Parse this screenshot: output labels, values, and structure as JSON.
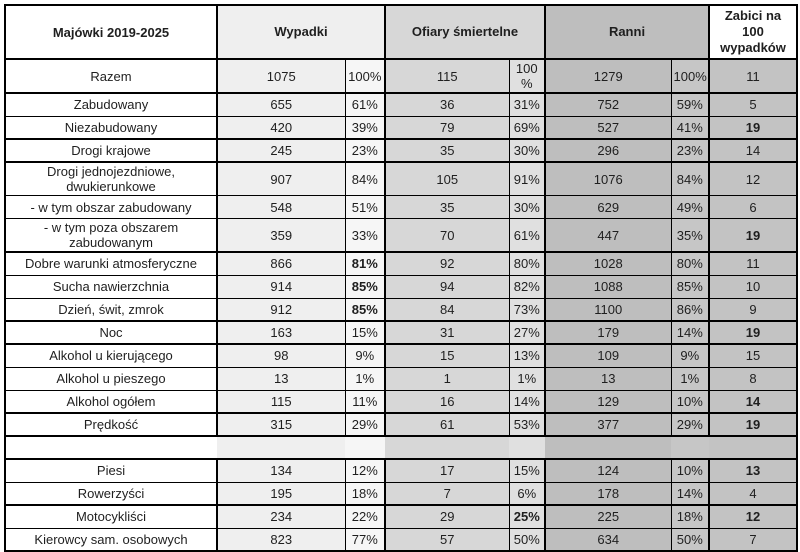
{
  "table": {
    "corner_label": "Majówki 2019-2025",
    "col_groups": {
      "wypadki": "Wypadki",
      "ofiary": "Ofiary śmiertelne",
      "ranni": "Ranni",
      "zabici": "Zabici na 100 wypadków"
    },
    "rows": [
      {
        "label": "Razem",
        "wypadki": "1075",
        "wypadki_pct": "100%",
        "ofiary": "115",
        "ofiary_pct": "100 %",
        "ranni": "1279",
        "ranni_pct": "100%",
        "zabici": "11",
        "bold": [],
        "thick_bottom": true,
        "tall": true
      },
      {
        "label": "Zabudowany",
        "wypadki": "655",
        "wypadki_pct": "61%",
        "ofiary": "36",
        "ofiary_pct": "31%",
        "ranni": "752",
        "ranni_pct": "59%",
        "zabici": "5",
        "bold": [],
        "thick_bottom": false
      },
      {
        "label": "Niezabudowany",
        "wypadki": "420",
        "wypadki_pct": "39%",
        "ofiary": "79",
        "ofiary_pct": "69%",
        "ranni": "527",
        "ranni_pct": "41%",
        "zabici": "19",
        "bold": [
          "zabici"
        ],
        "thick_bottom": true
      },
      {
        "label": "Drogi krajowe",
        "wypadki": "245",
        "wypadki_pct": "23%",
        "ofiary": "35",
        "ofiary_pct": "30%",
        "ranni": "296",
        "ranni_pct": "23%",
        "zabici": "14",
        "bold": [],
        "thick_bottom": true
      },
      {
        "label": "Drogi jednojezdniowe, dwukierunkowe",
        "wypadki": "907",
        "wypadki_pct": "84%",
        "ofiary": "105",
        "ofiary_pct": "91%",
        "ranni": "1076",
        "ranni_pct": "84%",
        "zabici": "12",
        "bold": [],
        "thick_bottom": false
      },
      {
        "label": "- w tym obszar zabudowany",
        "wypadki": "548",
        "wypadki_pct": "51%",
        "ofiary": "35",
        "ofiary_pct": "30%",
        "ranni": "629",
        "ranni_pct": "49%",
        "zabici": "6",
        "bold": [],
        "thick_bottom": false
      },
      {
        "label": "- w tym poza obszarem zabudowanym",
        "wypadki": "359",
        "wypadki_pct": "33%",
        "ofiary": "70",
        "ofiary_pct": "61%",
        "ranni": "447",
        "ranni_pct": "35%",
        "zabici": "19",
        "bold": [
          "zabici"
        ],
        "thick_bottom": true
      },
      {
        "label": "Dobre warunki atmosferyczne",
        "wypadki": "866",
        "wypadki_pct": "81%",
        "ofiary": "92",
        "ofiary_pct": "80%",
        "ranni": "1028",
        "ranni_pct": "80%",
        "zabici": "11",
        "bold": [
          "wypadki_pct"
        ],
        "thick_bottom": false
      },
      {
        "label": "Sucha nawierzchnia",
        "wypadki": "914",
        "wypadki_pct": "85%",
        "ofiary": "94",
        "ofiary_pct": "82%",
        "ranni": "1088",
        "ranni_pct": "85%",
        "zabici": "10",
        "bold": [
          "wypadki_pct"
        ],
        "thick_bottom": false
      },
      {
        "label": "Dzień, świt, zmrok",
        "wypadki": "912",
        "wypadki_pct": "85%",
        "ofiary": "84",
        "ofiary_pct": "73%",
        "ranni": "1100",
        "ranni_pct": "86%",
        "zabici": "9",
        "bold": [
          "wypadki_pct"
        ],
        "thick_bottom": true
      },
      {
        "label": "Noc",
        "wypadki": "163",
        "wypadki_pct": "15%",
        "ofiary": "31",
        "ofiary_pct": "27%",
        "ranni": "179",
        "ranni_pct": "14%",
        "zabici": "19",
        "bold": [
          "zabici"
        ],
        "thick_bottom": true
      },
      {
        "label": "Alkohol u kierującego",
        "wypadki": "98",
        "wypadki_pct": "9%",
        "ofiary": "15",
        "ofiary_pct": "13%",
        "ranni": "109",
        "ranni_pct": "9%",
        "zabici": "15",
        "bold": [],
        "thick_bottom": false
      },
      {
        "label": "Alkohol u pieszego",
        "wypadki": "13",
        "wypadki_pct": "1%",
        "ofiary": "1",
        "ofiary_pct": "1%",
        "ranni": "13",
        "ranni_pct": "1%",
        "zabici": "8",
        "bold": [],
        "thick_bottom": false
      },
      {
        "label": "Alkohol ogółem",
        "wypadki": "115",
        "wypadki_pct": "11%",
        "ofiary": "16",
        "ofiary_pct": "14%",
        "ranni": "129",
        "ranni_pct": "10%",
        "zabici": "14",
        "bold": [
          "zabici"
        ],
        "thick_bottom": true
      },
      {
        "label": "Prędkość",
        "wypadki": "315",
        "wypadki_pct": "29%",
        "ofiary": "61",
        "ofiary_pct": "53%",
        "ranni": "377",
        "ranni_pct": "29%",
        "zabici": "19",
        "bold": [
          "zabici"
        ],
        "thick_bottom": true
      },
      {
        "label": "",
        "wypadki": "",
        "wypadki_pct": "",
        "ofiary": "",
        "ofiary_pct": "",
        "ranni": "",
        "ranni_pct": "",
        "zabici": "",
        "bold": [],
        "thick_bottom": true,
        "spacer": true
      },
      {
        "label": "Piesi",
        "wypadki": "134",
        "wypadki_pct": "12%",
        "ofiary": "17",
        "ofiary_pct": "15%",
        "ranni": "124",
        "ranni_pct": "10%",
        "zabici": "13",
        "bold": [
          "zabici"
        ],
        "thick_bottom": false
      },
      {
        "label": "Rowerzyści",
        "wypadki": "195",
        "wypadki_pct": "18%",
        "ofiary": "7",
        "ofiary_pct": "6%",
        "ranni": "178",
        "ranni_pct": "14%",
        "zabici": "4",
        "bold": [],
        "thick_bottom": true
      },
      {
        "label": "Motocykliści",
        "wypadki": "234",
        "wypadki_pct": "22%",
        "ofiary": "29",
        "ofiary_pct": "25%",
        "ranni": "225",
        "ranni_pct": "18%",
        "zabici": "12",
        "bold": [
          "ofiary_pct",
          "zabici"
        ],
        "thick_bottom": false
      },
      {
        "label": "Kierowcy sam. osobowych",
        "wypadki": "823",
        "wypadki_pct": "77%",
        "ofiary": "57",
        "ofiary_pct": "50%",
        "ranni": "634",
        "ranni_pct": "50%",
        "zabici": "7",
        "bold": [],
        "thick_bottom": false
      }
    ]
  },
  "colors": {
    "border": "#000000",
    "label_bg": "#ffffff",
    "wypadki_bg": "#efefef",
    "ofiary_bg": "#d7d7d7",
    "ranni_bg": "#bebebe",
    "zabici_cells_bg": "#c3c3c3",
    "zabici_header_bg": "#ffffff",
    "text": "#1f1f1f"
  }
}
